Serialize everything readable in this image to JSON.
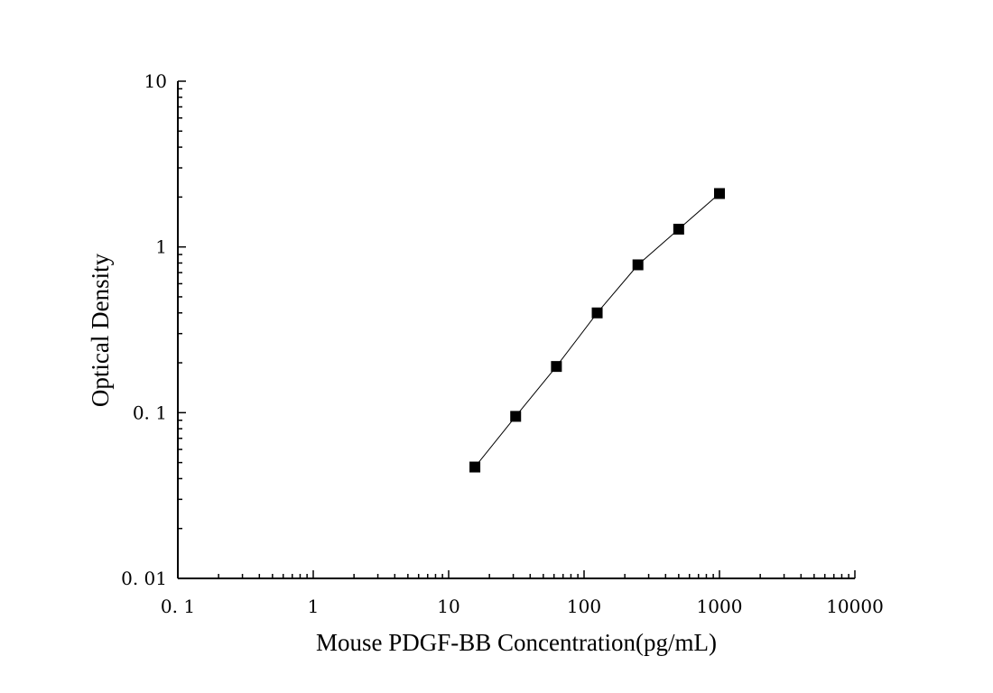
{
  "chart_data": {
    "type": "scatter",
    "xlabel": "Mouse PDGF-BB Concentration(pg/mL)",
    "ylabel": "Optical Density",
    "xscale": "log",
    "yscale": "log",
    "xlim": [
      0.1,
      10000
    ],
    "ylim": [
      0.01,
      10
    ],
    "x_tick_labels": [
      "0. 1",
      "1",
      "10",
      "100",
      "1000",
      "10000"
    ],
    "y_tick_labels": [
      "0. 01",
      "0. 1",
      "1",
      "10"
    ],
    "x_ticks": [
      0.1,
      1,
      10,
      100,
      1000,
      10000
    ],
    "y_ticks": [
      0.01,
      0.1,
      1,
      10
    ],
    "grid": false,
    "legend": "none",
    "marker": "square",
    "marker_color": "#000000",
    "line_color": "#000000",
    "series": [
      {
        "x": [
          15.625,
          31.25,
          62.5,
          125,
          250,
          500,
          1000
        ],
        "y": [
          0.047,
          0.095,
          0.19,
          0.4,
          0.78,
          1.28,
          2.1
        ]
      }
    ]
  }
}
